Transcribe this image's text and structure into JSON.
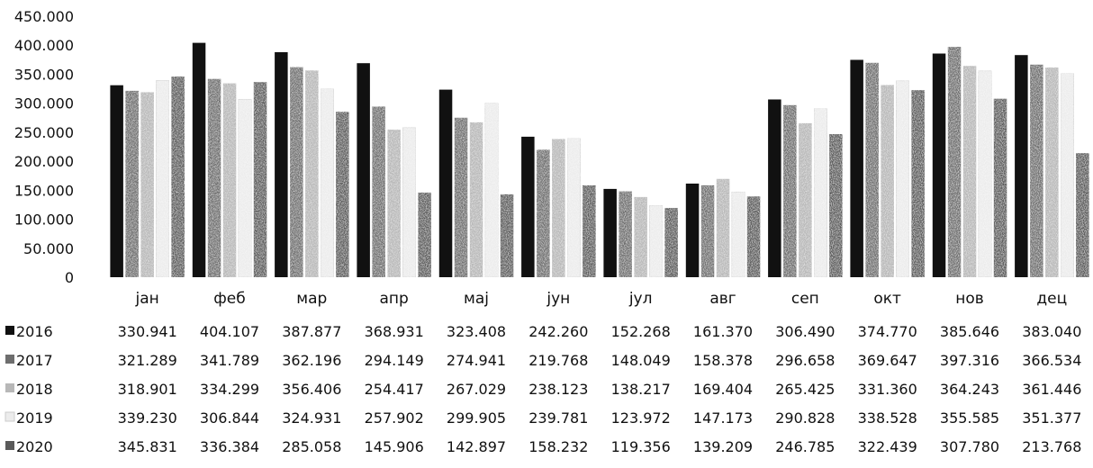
{
  "chart_data": {
    "type": "bar",
    "categories": [
      "јан",
      "феб",
      "мар",
      "апр",
      "мај",
      "јун",
      "јул",
      "авг",
      "сеп",
      "окт",
      "нов",
      "дец"
    ],
    "y_ticks": [
      "0",
      "50.000",
      "100.000",
      "150.000",
      "200.000",
      "250.000",
      "300.000",
      "350.000",
      "400.000",
      "450.000"
    ],
    "ylim": [
      0,
      450000
    ],
    "legend": "data-table-below",
    "grid": false,
    "series": [
      {
        "name": "2016",
        "color": "#111111",
        "values": [
          330941,
          404107,
          387877,
          368931,
          323408,
          242260,
          152268,
          161370,
          306490,
          374770,
          385646,
          383040
        ],
        "labels": [
          "330.941",
          "404.107",
          "387.877",
          "368.931",
          "323.408",
          "242.260",
          "152.268",
          "161.370",
          "306.490",
          "374.770",
          "385.646",
          "383.040"
        ]
      },
      {
        "name": "2017",
        "color": "#6e6e6e",
        "values": [
          321289,
          341789,
          362196,
          294149,
          274941,
          219768,
          148049,
          158378,
          296658,
          369647,
          397316,
          366534
        ],
        "labels": [
          "321.289",
          "341.789",
          "362.196",
          "294.149",
          "274.941",
          "219.768",
          "148.049",
          "158.378",
          "296.658",
          "369.647",
          "397.316",
          "366.534"
        ]
      },
      {
        "name": "2018",
        "color": "#b8b8b8",
        "values": [
          318901,
          334299,
          356406,
          254417,
          267029,
          238123,
          138217,
          169404,
          265425,
          331360,
          364243,
          361446
        ],
        "labels": [
          "318.901",
          "334.299",
          "356.406",
          "254.417",
          "267.029",
          "238.123",
          "138.217",
          "169.404",
          "265.425",
          "331.360",
          "364.243",
          "361.446"
        ]
      },
      {
        "name": "2019",
        "color": "#ececec",
        "values": [
          339230,
          306844,
          324931,
          257902,
          299905,
          239781,
          123972,
          147173,
          290828,
          338528,
          355585,
          351377
        ],
        "labels": [
          "339.230",
          "306.844",
          "324.931",
          "257.902",
          "299.905",
          "239.781",
          "123.972",
          "147.173",
          "290.828",
          "338.528",
          "355.585",
          "351.377"
        ]
      },
      {
        "name": "2020",
        "color": "#5a5a5a",
        "values": [
          345831,
          336384,
          285058,
          145906,
          142897,
          158232,
          119356,
          139209,
          246785,
          322439,
          307780,
          213768
        ],
        "labels": [
          "345.831",
          "336.384",
          "285.058",
          "145.906",
          "142.897",
          "158.232",
          "119.356",
          "139.209",
          "246.785",
          "322.439",
          "307.780",
          "213.768"
        ]
      }
    ]
  }
}
